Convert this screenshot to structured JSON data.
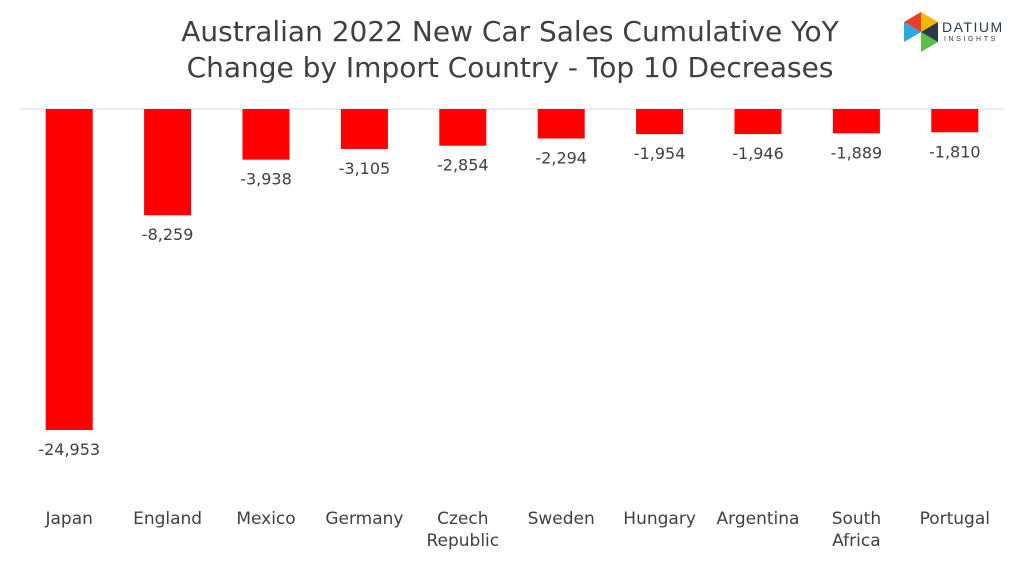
{
  "title_lines": [
    "Australian 2022 New Car Sales Cumulative YoY",
    "Change by Import Country - Top 10 Decreases"
  ],
  "logo": {
    "name": "DATIUM",
    "tagline": "INSIGHTS",
    "colors": [
      "#f5b800",
      "#e8402a",
      "#2aa8e0",
      "#5bbf4a",
      "#2b3a4a"
    ]
  },
  "bar_color": "#ff0000",
  "chart_data": {
    "type": "bar",
    "title": "Australian 2022 New Car Sales Cumulative YoY Change by Import Country - Top 10 Decreases",
    "categories": [
      [
        "Japan"
      ],
      [
        "England"
      ],
      [
        "Mexico"
      ],
      [
        "Germany"
      ],
      [
        "Czech",
        "Republic"
      ],
      [
        "Sweden"
      ],
      [
        "Hungary"
      ],
      [
        "Argentina"
      ],
      [
        "South",
        "Africa"
      ],
      [
        "Portugal"
      ]
    ],
    "values": [
      -24953,
      -8259,
      -3938,
      -3105,
      -2854,
      -2294,
      -1954,
      -1946,
      -1889,
      -1810
    ],
    "value_labels": [
      "-24,953",
      "-8,259",
      "-3,938",
      "-3,105",
      "-2,854",
      "-2,294",
      "-1,954",
      "-1,946",
      "-1,889",
      "-1,810"
    ],
    "xlabel": "",
    "ylabel": "",
    "ylim": [
      -24953,
      0
    ],
    "grid": false,
    "legend": "none"
  }
}
